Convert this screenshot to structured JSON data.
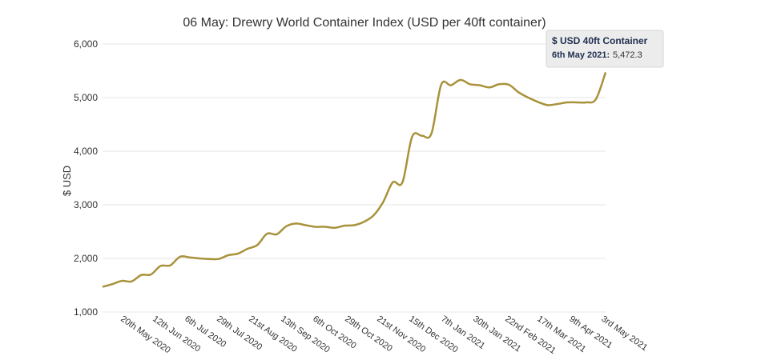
{
  "chart_data": {
    "type": "line",
    "title": "06 May: Drewry World Container Index (USD per 40ft container)",
    "ylabel": "$ USD",
    "xlabel": "",
    "ylim": [
      1000,
      6000
    ],
    "yticks": [
      "1,000",
      "2,000",
      "3,000",
      "4,000",
      "5,000",
      "6,000"
    ],
    "ytick_values": [
      1000,
      2000,
      3000,
      4000,
      5000,
      6000
    ],
    "xticks": [
      "20th May 2020",
      "12th Jun 2020",
      "6th Jul 2020",
      "29th Jul 2020",
      "21st Aug 2020",
      "13th Sep 2020",
      "6th Oct 2020",
      "29th Oct 2020",
      "21st Nov 2020",
      "15th Dec 2020",
      "7th Jan 2021",
      "30th Jan 2021",
      "22nd Feb 2021",
      "17th Mar 2021",
      "9th Apr 2021",
      "3rd May 2021"
    ],
    "grid": true,
    "line_color": "#a8923a",
    "series": [
      {
        "values": [
          1470,
          1520,
          1580,
          1570,
          1690,
          1700,
          1860,
          1870,
          2030,
          2020,
          2000,
          1990,
          1990,
          2060,
          2090,
          2180,
          2250,
          2460,
          2450,
          2600,
          2650,
          2620,
          2590,
          2590,
          2570,
          2610,
          2620,
          2680,
          2800,
          3050,
          3420,
          3420,
          4270,
          4290,
          4330,
          5240,
          5230,
          5330,
          5250,
          5230,
          5190,
          5250,
          5240,
          5100,
          5000,
          4920,
          4860,
          4880,
          4910,
          4910,
          4910,
          4970,
          5472.3
        ]
      }
    ],
    "tooltip": {
      "title": "$ USD 40ft Container",
      "point_label": "6th May 2021:",
      "point_value": "5,472.3"
    }
  }
}
